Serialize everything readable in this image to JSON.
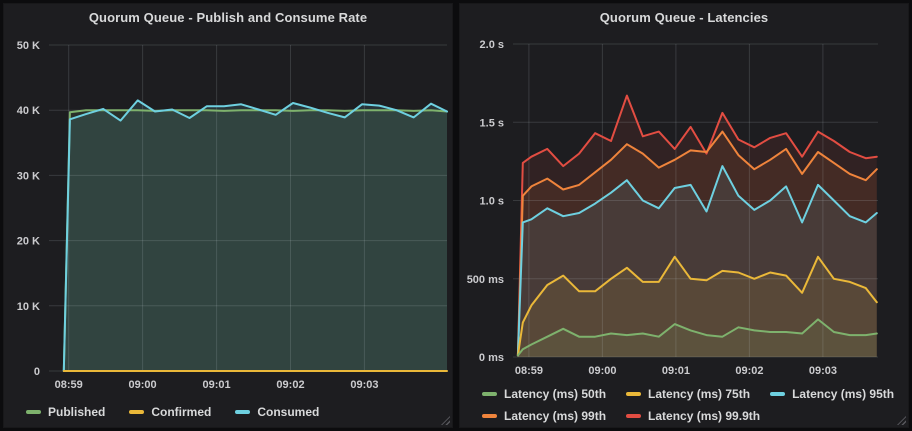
{
  "colors": {
    "page_bg": "#0c0c0e",
    "panel_bg": "#1d1d20",
    "grid": "rgba(202,210,215,0.16)",
    "axis_text": "#cbcbce",
    "title_text": "#d8d9da",
    "legend_text": "#d8d9da",
    "green": "#7EB26D",
    "yellow": "#EAB839",
    "cyan": "#6ED0E0",
    "orange": "#EF843C",
    "red": "#E24D42"
  },
  "chart_data": [
    {
      "type": "line",
      "title": "Quorum Queue - Publish and Consume Rate",
      "xlabel": "",
      "ylabel": "",
      "ylim": [
        0,
        50000
      ],
      "grid": true,
      "legend_position": "bottom",
      "x_domain": [
        0,
        323
      ],
      "x_ticks": [
        {
          "t": 16,
          "label": "08:59"
        },
        {
          "t": 76,
          "label": "09:00"
        },
        {
          "t": 136,
          "label": "09:01"
        },
        {
          "t": 196,
          "label": "09:02"
        },
        {
          "t": 256,
          "label": "09:03"
        }
      ],
      "y_max": 50,
      "y_ticks": [
        {
          "v": 50,
          "label": "50 K"
        },
        {
          "v": 40,
          "label": "40 K"
        },
        {
          "v": 30,
          "label": "30 K"
        },
        {
          "v": 20,
          "label": "20 K"
        },
        {
          "v": 10,
          "label": "10 K"
        },
        {
          "v": 0,
          "label": "0"
        }
      ],
      "times": [
        12,
        17,
        30,
        44,
        58,
        72,
        86,
        100,
        114,
        128,
        142,
        156,
        170,
        184,
        198,
        212,
        226,
        240,
        254,
        268,
        282,
        296,
        310,
        323
      ],
      "series": [
        {
          "label": "Published",
          "color": "#7EB26D",
          "fill_opacity": 0.13,
          "values": [
            0,
            39.7,
            40,
            40,
            40,
            40,
            39.9,
            40,
            40,
            40,
            39.9,
            40,
            40,
            40,
            39.9,
            40,
            40,
            39.9,
            40,
            40,
            40,
            39.9,
            40,
            39.8
          ]
        },
        {
          "label": "Confirmed",
          "color": "#EAB839",
          "fill_opacity": 0,
          "values": [
            0,
            0,
            0,
            0,
            0,
            0,
            0,
            0,
            0,
            0,
            0,
            0,
            0,
            0,
            0,
            0,
            0,
            0,
            0,
            0,
            0,
            0,
            0,
            0
          ]
        },
        {
          "label": "Consumed",
          "color": "#6ED0E0",
          "fill_opacity": 0.13,
          "values": [
            0,
            38.6,
            39.4,
            40.2,
            38.4,
            41.5,
            39.8,
            40.1,
            38.8,
            40.6,
            40.6,
            40.9,
            40.1,
            39.3,
            41.1,
            40.4,
            39.6,
            38.9,
            40.9,
            40.7,
            40.0,
            38.9,
            41.0,
            39.8
          ]
        }
      ],
      "draw_order": [
        0,
        2,
        1
      ]
    },
    {
      "type": "line",
      "title": "Quorum Queue - Latencies",
      "xlabel": "",
      "ylabel": "",
      "ylim": [
        0,
        2.0
      ],
      "grid": true,
      "legend_position": "bottom",
      "x_domain": [
        3,
        301
      ],
      "x_ticks": [
        {
          "t": 16,
          "label": "08:59"
        },
        {
          "t": 76,
          "label": "09:00"
        },
        {
          "t": 136,
          "label": "09:01"
        },
        {
          "t": 196,
          "label": "09:02"
        },
        {
          "t": 256,
          "label": "09:03"
        }
      ],
      "y_max": 2.0,
      "y_ticks": [
        {
          "v": 2.0,
          "label": "2.0 s"
        },
        {
          "v": 1.5,
          "label": "1.5 s"
        },
        {
          "v": 1.0,
          "label": "1.0 s"
        },
        {
          "v": 0.5,
          "label": "500 ms"
        },
        {
          "v": 0,
          "label": "0 ms"
        }
      ],
      "times": [
        7,
        11,
        18,
        31,
        44,
        57,
        70,
        83,
        96,
        109,
        122,
        135,
        148,
        161,
        174,
        187,
        200,
        213,
        226,
        239,
        252,
        265,
        278,
        291,
        300
      ],
      "series": [
        {
          "label": "Latency (ms) 50th",
          "color": "#7EB26D",
          "fill_opacity": 0.1,
          "values": [
            0.01,
            0.05,
            0.08,
            0.13,
            0.18,
            0.13,
            0.13,
            0.15,
            0.14,
            0.15,
            0.13,
            0.21,
            0.17,
            0.14,
            0.13,
            0.19,
            0.17,
            0.16,
            0.16,
            0.15,
            0.24,
            0.16,
            0.14,
            0.14,
            0.15
          ]
        },
        {
          "label": "Latency (ms) 75th",
          "color": "#EAB839",
          "fill_opacity": 0.1,
          "values": [
            0.01,
            0.22,
            0.33,
            0.46,
            0.52,
            0.42,
            0.42,
            0.5,
            0.57,
            0.48,
            0.48,
            0.64,
            0.5,
            0.49,
            0.55,
            0.54,
            0.5,
            0.54,
            0.52,
            0.41,
            0.64,
            0.5,
            0.48,
            0.44,
            0.35
          ]
        },
        {
          "label": "Latency (ms) 95th",
          "color": "#6ED0E0",
          "fill_opacity": 0.1,
          "values": [
            0.01,
            0.86,
            0.88,
            0.95,
            0.9,
            0.92,
            0.98,
            1.05,
            1.13,
            1.0,
            0.95,
            1.08,
            1.1,
            0.93,
            1.22,
            1.03,
            0.94,
            1.0,
            1.09,
            0.86,
            1.1,
            1.0,
            0.9,
            0.86,
            0.92
          ]
        },
        {
          "label": "Latency (ms) 99th",
          "color": "#EF843C",
          "fill_opacity": 0.1,
          "values": [
            0.01,
            1.03,
            1.09,
            1.14,
            1.07,
            1.1,
            1.18,
            1.26,
            1.36,
            1.3,
            1.21,
            1.26,
            1.32,
            1.31,
            1.44,
            1.29,
            1.2,
            1.26,
            1.33,
            1.17,
            1.31,
            1.24,
            1.17,
            1.13,
            1.2
          ]
        },
        {
          "label": "Latency (ms) 99.9th",
          "color": "#E24D42",
          "fill_opacity": 0.1,
          "values": [
            0.01,
            1.24,
            1.28,
            1.33,
            1.22,
            1.3,
            1.43,
            1.38,
            1.67,
            1.41,
            1.44,
            1.33,
            1.47,
            1.3,
            1.56,
            1.39,
            1.34,
            1.4,
            1.43,
            1.28,
            1.44,
            1.38,
            1.31,
            1.27,
            1.28
          ]
        }
      ],
      "draw_order": [
        4,
        3,
        2,
        1,
        0
      ]
    }
  ]
}
